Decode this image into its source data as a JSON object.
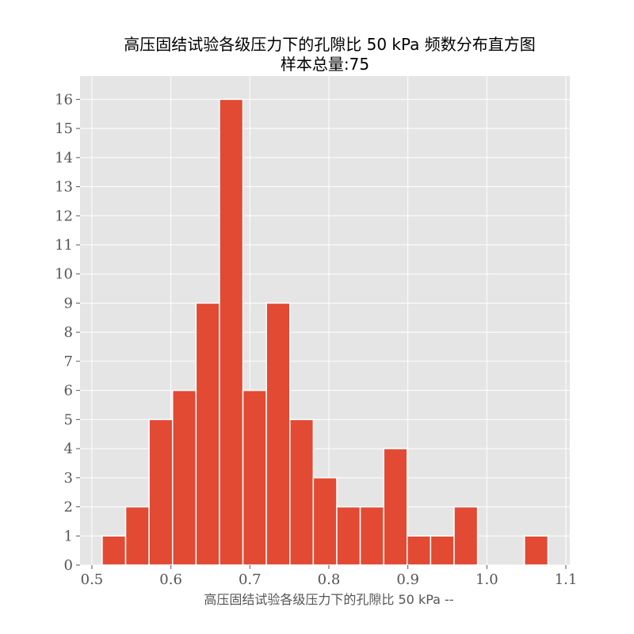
{
  "chart_data": {
    "type": "bar",
    "title_lines": [
      "高压固结试验各级压力下的孔隙比 50 kPa 频数分布直方图",
      "样本总量:75"
    ],
    "xlabel": "高压固结试验各级压力下的孔隙比 50 kPa --",
    "ylabel": "",
    "xlim": [
      0.485,
      1.105
    ],
    "ylim": [
      0,
      16.8
    ],
    "x_ticks": [
      0.5,
      0.6,
      0.7,
      0.8,
      0.9,
      1.0,
      1.1
    ],
    "x_tick_labels": [
      "0.5",
      "0.6",
      "0.7",
      "0.8",
      "0.9",
      "1.0",
      "1.1"
    ],
    "y_ticks": [
      0,
      1,
      2,
      3,
      4,
      5,
      6,
      7,
      8,
      9,
      10,
      11,
      12,
      13,
      14,
      15,
      16
    ],
    "bins": [
      0.513,
      0.5427,
      0.5724,
      0.6021,
      0.6318,
      0.6615,
      0.6912,
      0.7209,
      0.7506,
      0.7803,
      0.81,
      0.8397,
      0.8694,
      0.8991,
      0.9288,
      0.9585,
      0.9882,
      1.0179,
      1.0476,
      1.0773
    ],
    "counts": [
      1,
      2,
      5,
      6,
      9,
      16,
      6,
      9,
      5,
      3,
      2,
      2,
      4,
      1,
      1,
      2,
      0,
      0,
      1
    ],
    "grid": true,
    "colors": {
      "bar": "#E24A33",
      "bar_edge": "#FFFFFF",
      "plot_background": "#E5E5E5",
      "grid": "#FFFFFF"
    }
  }
}
